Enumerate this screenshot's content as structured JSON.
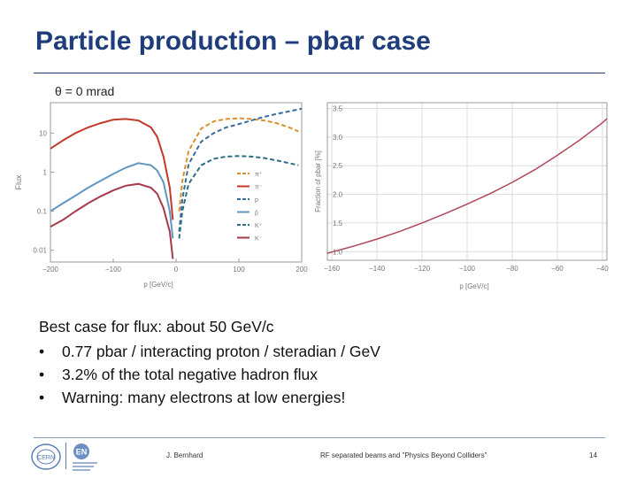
{
  "slide": {
    "title": "Particle production – pbar case",
    "theta_label": "θ = 0 mrad"
  },
  "chart_data": [
    {
      "type": "line",
      "ylabel": "Flux",
      "xlabel": "p [GeV/c]",
      "yscale": "log",
      "xlim": [
        -200,
        200
      ],
      "ylim": [
        0.005,
        60
      ],
      "x_ticks": [
        "−200",
        "−100",
        "0",
        "100",
        "200"
      ],
      "y_ticks": [
        "0.01",
        "0.1",
        "1",
        "10"
      ],
      "y_tick_values": [
        0.01,
        0.1,
        1,
        10
      ],
      "legend_position": "right",
      "grid": false,
      "series": [
        {
          "name": "π⁺",
          "color": "#d9902c",
          "dash": true,
          "x": [
            5,
            10,
            20,
            40,
            60,
            80,
            100,
            120,
            140,
            160,
            180,
            195
          ],
          "y": [
            0.1,
            0.6,
            3.5,
            13,
            20,
            23,
            24,
            23,
            21,
            18,
            14,
            11
          ]
        },
        {
          "name": "π⁻",
          "color": "#c0392b",
          "dash": false,
          "x": [
            -200,
            -180,
            -160,
            -140,
            -120,
            -100,
            -80,
            -60,
            -40,
            -30,
            -20,
            -10,
            -5
          ],
          "y": [
            4,
            6.5,
            10,
            14,
            18,
            22,
            23,
            21,
            14,
            8,
            2.5,
            0.4,
            0.06
          ]
        },
        {
          "name": "p",
          "color": "#3a6a99",
          "dash": true,
          "x": [
            5,
            10,
            20,
            40,
            60,
            80,
            100,
            120,
            140,
            160,
            180,
            200
          ],
          "y": [
            0.03,
            0.2,
            1.6,
            6,
            10,
            14,
            17,
            21,
            26,
            31,
            36,
            42
          ]
        },
        {
          "name": "p̄",
          "color": "#5f97c2",
          "dash": false,
          "x": [
            -200,
            -180,
            -160,
            -140,
            -120,
            -100,
            -80,
            -60,
            -40,
            -30,
            -20,
            -10,
            -5
          ],
          "y": [
            0.1,
            0.16,
            0.25,
            0.4,
            0.6,
            0.9,
            1.3,
            1.7,
            1.5,
            1.1,
            0.55,
            0.1,
            0.02
          ]
        },
        {
          "name": "K⁺",
          "color": "#2b6f85",
          "dash": true,
          "x": [
            5,
            10,
            20,
            40,
            60,
            80,
            100,
            120,
            140,
            160,
            180,
            195
          ],
          "y": [
            0.02,
            0.1,
            0.5,
            1.5,
            2.2,
            2.5,
            2.6,
            2.5,
            2.3,
            2,
            1.7,
            1.5
          ]
        },
        {
          "name": "K⁻",
          "color": "#a63a4a",
          "dash": false,
          "x": [
            -200,
            -180,
            -160,
            -140,
            -120,
            -100,
            -80,
            -60,
            -40,
            -30,
            -20,
            -10,
            -5
          ],
          "y": [
            0.04,
            0.06,
            0.1,
            0.16,
            0.24,
            0.34,
            0.45,
            0.5,
            0.4,
            0.28,
            0.12,
            0.03,
            0.006
          ]
        }
      ]
    },
    {
      "type": "line",
      "ylabel": "Fraction of pbar [%]",
      "xlabel": "p [GeV/c]",
      "xlim": [
        -162,
        -38
      ],
      "ylim": [
        0.85,
        3.6
      ],
      "x_ticks": [
        "−160",
        "−140",
        "−120",
        "−100",
        "−80",
        "−60",
        "−40"
      ],
      "x_tick_values": [
        -160,
        -140,
        -120,
        -100,
        -80,
        -60,
        -40
      ],
      "y_ticks": [
        "1.0",
        "1.5",
        "2.0",
        "2.5",
        "3.0",
        "3.5"
      ],
      "y_tick_values": [
        1.0,
        1.5,
        2.0,
        2.5,
        3.0,
        3.5
      ],
      "grid": true,
      "series": [
        {
          "color": "#b0475a",
          "x": [
            -162,
            -150,
            -140,
            -130,
            -120,
            -110,
            -100,
            -90,
            -80,
            -70,
            -60,
            -50,
            -40,
            -38
          ],
          "y": [
            0.97,
            1.1,
            1.22,
            1.35,
            1.5,
            1.66,
            1.83,
            2.01,
            2.21,
            2.43,
            2.68,
            2.95,
            3.25,
            3.32
          ]
        }
      ]
    }
  ],
  "body": {
    "heading": "Best case for flux: about 50 GeV/c",
    "bullet_char": "•",
    "bullets": [
      "0.77 pbar / interacting proton / steradian / GeV",
      "3.2% of the total negative hadron flux",
      "Warning: many electrons at low energies!"
    ]
  },
  "footer": {
    "author": "J. Bernhard",
    "talk": "RF separated beams and \"Physics Beyond Colliders\"",
    "page": "14"
  },
  "logos": {
    "cern_text": "CERN",
    "en_text": "EN"
  }
}
